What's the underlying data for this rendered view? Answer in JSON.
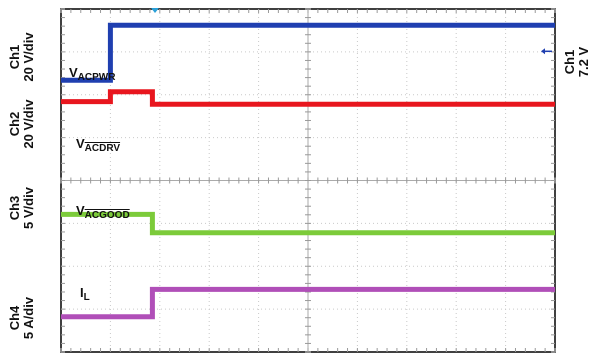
{
  "chart_data": {
    "type": "line",
    "title": "",
    "grid": true,
    "channels": [
      {
        "id": "ch1",
        "label": "Ch1",
        "scale": "20 V/div",
        "color": "#1f3fb0"
      },
      {
        "id": "ch2",
        "label": "Ch2",
        "scale": "20 V/div",
        "color": "#e8161e"
      },
      {
        "id": "ch3",
        "label": "Ch3",
        "scale": "5 V/div",
        "color": "#7ccb3a"
      },
      {
        "id": "ch4",
        "label": "Ch4",
        "scale": "5 A/div",
        "color": "#b04fb8"
      }
    ],
    "right_label": {
      "line1": "Ch1",
      "line2": "7.2 V"
    },
    "x_divisions": 10,
    "y_divisions": 8,
    "series": [
      {
        "name": "V_ACPWR",
        "label_main": "V",
        "label_sub": "ACPWR",
        "overline": false,
        "channel": "ch1",
        "color": "#1f3fb0",
        "x": [
          0,
          1.0,
          1.0,
          10
        ],
        "y": [
          6.34,
          6.34,
          7.62,
          7.62
        ]
      },
      {
        "name": "V_ACDRV",
        "label_main": "V",
        "label_sub": "ACDRV",
        "overline": true,
        "channel": "ch2",
        "color": "#e8161e",
        "x": [
          0,
          1.0,
          1.0,
          1.85,
          1.85,
          10
        ],
        "y": [
          5.84,
          5.84,
          6.07,
          6.07,
          5.78,
          5.78
        ]
      },
      {
        "name": "V_ACGOOD",
        "label_main": "V",
        "label_sub": "ACGOOD",
        "overline": true,
        "channel": "ch3",
        "color": "#7ccb3a",
        "x": [
          0,
          1.85,
          1.85,
          10
        ],
        "y": [
          3.21,
          3.21,
          2.78,
          2.78
        ]
      },
      {
        "name": "I_L",
        "label_main": "I",
        "label_sub": "L",
        "overline": false,
        "channel": "ch4",
        "color": "#b04fb8",
        "x": [
          0,
          1.85,
          1.85,
          10
        ],
        "y": [
          0.82,
          0.82,
          1.46,
          1.46
        ]
      }
    ]
  }
}
